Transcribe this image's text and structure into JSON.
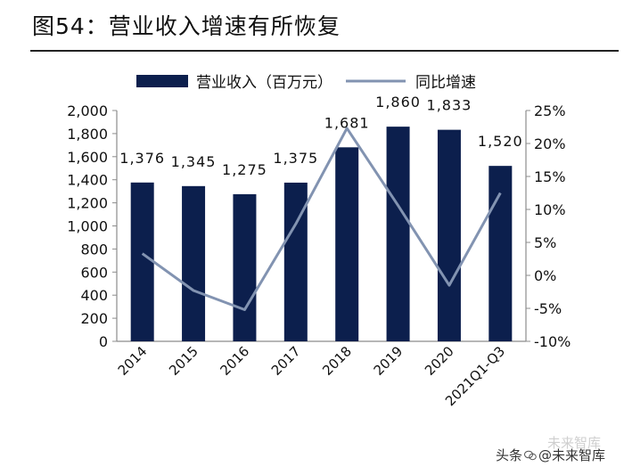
{
  "title": "图54：营业收入增速有所恢复",
  "watermark": {
    "prefix": "头条",
    "handle": "@未来智库",
    "logo": "未来智库"
  },
  "colors": {
    "bar": "#0c1f4d",
    "line": "#8293b1",
    "axis": "#8c8c8c",
    "text": "#111111"
  },
  "chart_data": {
    "type": "bar",
    "title": "图54：营业收入增速有所恢复",
    "categories": [
      "2014",
      "2015",
      "2016",
      "2017",
      "2018",
      "2019",
      "2020",
      "2021Q1-Q3"
    ],
    "series": [
      {
        "name": "营业收入（百万元）",
        "type": "bar",
        "axis": "left",
        "values": [
          1376,
          1345,
          1275,
          1375,
          1681,
          1860,
          1833,
          1520
        ],
        "labels": [
          "1,376",
          "1,345",
          "1,275",
          "1,375",
          "1,681",
          "1,860",
          "1,833",
          "1,520"
        ]
      },
      {
        "name": "同比增速",
        "type": "line",
        "axis": "right",
        "values": [
          3.3,
          -2.3,
          -5.2,
          7.8,
          22.3,
          10.6,
          -1.5,
          12.5
        ]
      }
    ],
    "left_axis": {
      "ylim": [
        0,
        2000
      ],
      "ticks": [
        0,
        200,
        400,
        600,
        800,
        1000,
        1200,
        1400,
        1600,
        1800,
        2000
      ],
      "tick_labels": [
        "0",
        "200",
        "400",
        "600",
        "800",
        "1,000",
        "1,200",
        "1,400",
        "1,600",
        "1,800",
        "2,000"
      ]
    },
    "right_axis": {
      "ylim": [
        -10,
        25
      ],
      "ticks": [
        -10,
        -5,
        0,
        5,
        10,
        15,
        20,
        25
      ],
      "tick_labels": [
        "-10%",
        "-5%",
        "0%",
        "5%",
        "10%",
        "15%",
        "20%",
        "25%"
      ]
    },
    "legend": {
      "position": "top"
    },
    "grid": false
  }
}
